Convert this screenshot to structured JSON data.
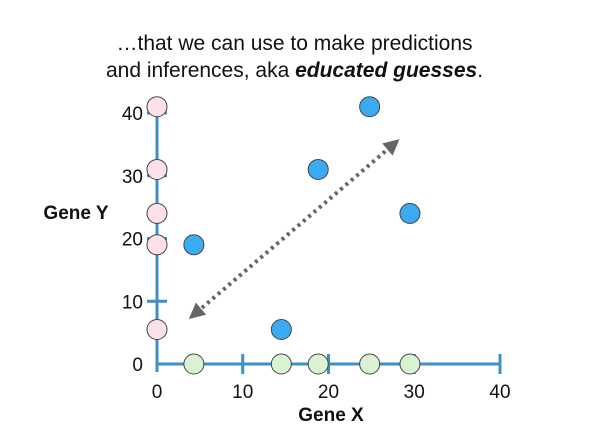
{
  "caption": {
    "line1": "…that we can use to make predictions",
    "line2_prefix": "and inferences, aka ",
    "line2_emphasis": "educated guesses",
    "line2_suffix": "."
  },
  "chart_data": {
    "type": "scatter",
    "xlabel": "Gene X",
    "ylabel": "Gene Y",
    "xlim": [
      0,
      40
    ],
    "ylim": [
      0,
      40
    ],
    "xticks": [
      0,
      10,
      20,
      30,
      40
    ],
    "yticks": [
      0,
      10,
      20,
      30,
      40
    ],
    "grid": false,
    "series": [
      {
        "role": "samples",
        "color": "#3aaaf2",
        "points": [
          [
            4.3,
            19
          ],
          [
            14.5,
            5.5
          ],
          [
            18.8,
            31
          ],
          [
            24.8,
            41
          ],
          [
            29.5,
            24
          ]
        ]
      },
      {
        "role": "y-axis projections",
        "color": "#fde0ea",
        "points": [
          [
            0,
            41
          ],
          [
            0,
            31
          ],
          [
            0,
            24
          ],
          [
            0,
            19
          ],
          [
            0,
            5.5
          ]
        ]
      },
      {
        "role": "x-axis projections",
        "color": "#d9f3d2",
        "points": [
          [
            4.3,
            0
          ],
          [
            14.5,
            0
          ],
          [
            18.8,
            0
          ],
          [
            24.8,
            0
          ],
          [
            29.5,
            0
          ]
        ]
      }
    ],
    "annotation": {
      "type": "double-arrow",
      "style": "dotted",
      "color": "#666666",
      "from": [
        4,
        7.5
      ],
      "to": [
        28,
        35.5
      ]
    }
  }
}
